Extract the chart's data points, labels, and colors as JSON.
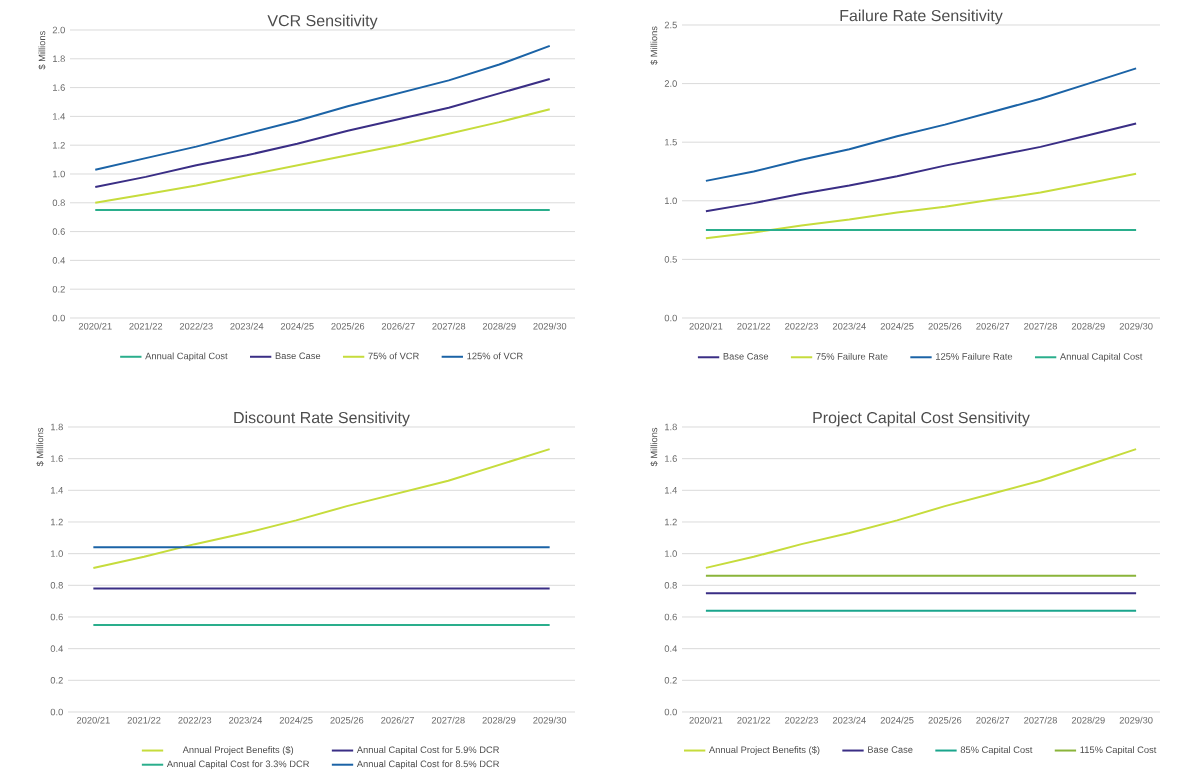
{
  "chart_data": [
    {
      "type": "line",
      "title": "VCR Sensitivity",
      "ylabel": "$ Millions",
      "categories": [
        "2020/21",
        "2021/22",
        "2022/23",
        "2023/24",
        "2024/25",
        "2025/26",
        "2026/27",
        "2027/28",
        "2028/29",
        "2029/30"
      ],
      "ylim": [
        0.0,
        2.0
      ],
      "yticks": [
        {
          "value": 0,
          "label": "0.0"
        },
        0.2,
        0.4,
        0.6,
        0.8,
        {
          "value": 1,
          "label": "1.0"
        },
        1.2,
        1.4,
        1.6,
        1.8,
        {
          "value": 2,
          "label": "2.0"
        }
      ],
      "grid": "y",
      "legend": "bottom",
      "series": [
        {
          "name": "Annual Capital Cost",
          "color": "#2aae8c",
          "values": [
            0.75,
            0.75,
            0.75,
            0.75,
            0.75,
            0.75,
            0.75,
            0.75,
            0.75,
            0.75
          ]
        },
        {
          "name": "Base Case",
          "color": "#3a2e85",
          "values": [
            0.91,
            0.98,
            1.06,
            1.13,
            1.21,
            1.3,
            1.38,
            1.46,
            1.56,
            1.66
          ]
        },
        {
          "name": "75% of VCR",
          "color": "#c6dc3c",
          "values": [
            0.8,
            0.86,
            0.92,
            0.99,
            1.06,
            1.13,
            1.2,
            1.28,
            1.36,
            1.45
          ]
        },
        {
          "name": "125% of VCR",
          "color": "#1b63a6",
          "values": [
            1.03,
            1.11,
            1.19,
            1.28,
            1.37,
            1.47,
            1.56,
            1.65,
            1.76,
            1.89
          ]
        }
      ]
    },
    {
      "type": "line",
      "title": "Failure Rate Sensitivity",
      "ylabel": "$ Millions",
      "categories": [
        "2020/21",
        "2021/22",
        "2022/23",
        "2023/24",
        "2024/25",
        "2025/26",
        "2026/27",
        "2027/28",
        "2028/29",
        "2029/30"
      ],
      "ylim": [
        0.0,
        2.5
      ],
      "yticks": [
        {
          "value": 0,
          "label": "0.0"
        },
        0.5,
        {
          "value": 1,
          "label": "1.0"
        },
        1.5,
        {
          "value": 2,
          "label": "2.0"
        },
        2.5
      ],
      "grid": "y",
      "legend": "bottom",
      "series": [
        {
          "name": "Base Case",
          "color": "#3a2e85",
          "values": [
            0.91,
            0.98,
            1.06,
            1.13,
            1.21,
            1.3,
            1.38,
            1.46,
            1.56,
            1.66
          ]
        },
        {
          "name": "75% Failure Rate",
          "color": "#c6dc3c",
          "values": [
            0.68,
            0.73,
            0.79,
            0.84,
            0.9,
            0.95,
            1.01,
            1.07,
            1.15,
            1.23
          ]
        },
        {
          "name": "125% Failure Rate",
          "color": "#1b63a6",
          "values": [
            1.17,
            1.25,
            1.35,
            1.44,
            1.55,
            1.65,
            1.76,
            1.87,
            2.0,
            2.13
          ]
        },
        {
          "name": "Annual Capital Cost",
          "color": "#2aae8c",
          "values": [
            0.75,
            0.75,
            0.75,
            0.75,
            0.75,
            0.75,
            0.75,
            0.75,
            0.75,
            0.75
          ]
        }
      ]
    },
    {
      "type": "line",
      "title": "Discount Rate Sensitivity",
      "ylabel": "$ Millions",
      "categories": [
        "2020/21",
        "2021/22",
        "2022/23",
        "2023/24",
        "2024/25",
        "2025/26",
        "2026/27",
        "2027/28",
        "2028/29",
        "2029/30"
      ],
      "ylim": [
        0.0,
        1.8
      ],
      "yticks": [
        {
          "value": 0,
          "label": "0.0"
        },
        0.2,
        0.4,
        0.6,
        0.8,
        {
          "value": 1,
          "label": "1.0"
        },
        1.2,
        1.4,
        1.6,
        1.8
      ],
      "grid": "y",
      "legend": "bottom",
      "series": [
        {
          "name": "Annual Project Benefits ($)",
          "color": "#c6dc3c",
          "values": [
            0.91,
            0.98,
            1.06,
            1.13,
            1.21,
            1.3,
            1.38,
            1.46,
            1.56,
            1.66
          ]
        },
        {
          "name": "Annual Capital Cost for 5.9% DCR",
          "color": "#3a2e85",
          "values": [
            0.78,
            0.78,
            0.78,
            0.78,
            0.78,
            0.78,
            0.78,
            0.78,
            0.78,
            0.78
          ]
        },
        {
          "name": "Annual Capital Cost for 3.3% DCR",
          "color": "#2aae8c",
          "values": [
            0.55,
            0.55,
            0.55,
            0.55,
            0.55,
            0.55,
            0.55,
            0.55,
            0.55,
            0.55
          ]
        },
        {
          "name": "Annual Capital Cost for 8.5% DCR",
          "color": "#1b63a6",
          "values": [
            1.04,
            1.04,
            1.04,
            1.04,
            1.04,
            1.04,
            1.04,
            1.04,
            1.04,
            1.04
          ]
        }
      ]
    },
    {
      "type": "line",
      "title": "Project Capital Cost Sensitivity",
      "ylabel": "$ Millions",
      "categories": [
        "2020/21",
        "2021/22",
        "2022/23",
        "2023/24",
        "2024/25",
        "2025/26",
        "2026/27",
        "2027/28",
        "2028/29",
        "2029/30"
      ],
      "ylim": [
        0.0,
        1.8
      ],
      "yticks": [
        {
          "value": 0,
          "label": "0.0"
        },
        0.2,
        0.4,
        0.6,
        0.8,
        {
          "value": 1,
          "label": "1.0"
        },
        1.2,
        1.4,
        1.6,
        1.8
      ],
      "grid": "y",
      "legend": "bottom",
      "series": [
        {
          "name": "Annual Project Benefits ($)",
          "color": "#c6dc3c",
          "values": [
            0.91,
            0.98,
            1.06,
            1.13,
            1.21,
            1.3,
            1.38,
            1.46,
            1.56,
            1.66
          ]
        },
        {
          "name": "Base Case",
          "color": "#3a2e85",
          "values": [
            0.75,
            0.75,
            0.75,
            0.75,
            0.75,
            0.75,
            0.75,
            0.75,
            0.75,
            0.75
          ]
        },
        {
          "name": "85% Capital Cost",
          "color": "#1aa58c",
          "values": [
            0.64,
            0.64,
            0.64,
            0.64,
            0.64,
            0.64,
            0.64,
            0.64,
            0.64,
            0.64
          ]
        },
        {
          "name": "115% Capital Cost",
          "color": "#8ab43a",
          "values": [
            0.86,
            0.86,
            0.86,
            0.86,
            0.86,
            0.86,
            0.86,
            0.86,
            0.86,
            0.86
          ]
        }
      ]
    }
  ]
}
